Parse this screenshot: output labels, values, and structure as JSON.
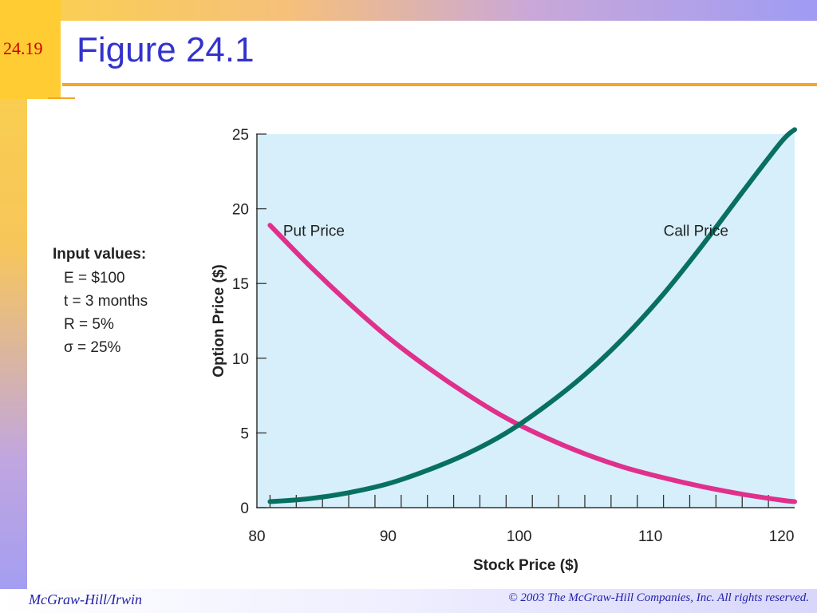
{
  "slide": {
    "number": "24.19",
    "title": "Figure 24.1"
  },
  "inputs": {
    "heading": "Input values:",
    "lines": [
      "E = $100",
      "t  = 3 months",
      "R = 5%",
      "σ = 25%"
    ]
  },
  "footer": {
    "left": "McGraw-Hill/Irwin",
    "right": "© 2003 The McGraw-Hill Companies, Inc. All rights reserved."
  },
  "colors": {
    "plot_bg": "#d6effa",
    "put": "#e0308c",
    "call": "#087060"
  },
  "chart_data": {
    "type": "line",
    "title": "",
    "xlabel": "Stock Price ($)",
    "ylabel": "Option Price ($)",
    "xlim": [
      80,
      121
    ],
    "ylim": [
      0,
      25
    ],
    "x_ticks": [
      80,
      90,
      100,
      110,
      120
    ],
    "y_ticks": [
      0,
      5,
      10,
      15,
      20,
      25
    ],
    "grid": false,
    "x": [
      81,
      84,
      87,
      90,
      93,
      96,
      99,
      102,
      105,
      108,
      111,
      114,
      117,
      120,
      121
    ],
    "series": [
      {
        "name": "Put Price",
        "values": [
          18.9,
          16.2,
          13.7,
          11.4,
          9.4,
          7.6,
          6.0,
          4.7,
          3.6,
          2.7,
          2.0,
          1.4,
          0.9,
          0.5,
          0.4
        ]
      },
      {
        "name": "Call Price",
        "values": [
          0.4,
          0.6,
          1.0,
          1.6,
          2.5,
          3.6,
          5.0,
          6.8,
          8.9,
          11.4,
          14.3,
          17.6,
          21.1,
          24.5,
          25.3
        ]
      }
    ]
  }
}
